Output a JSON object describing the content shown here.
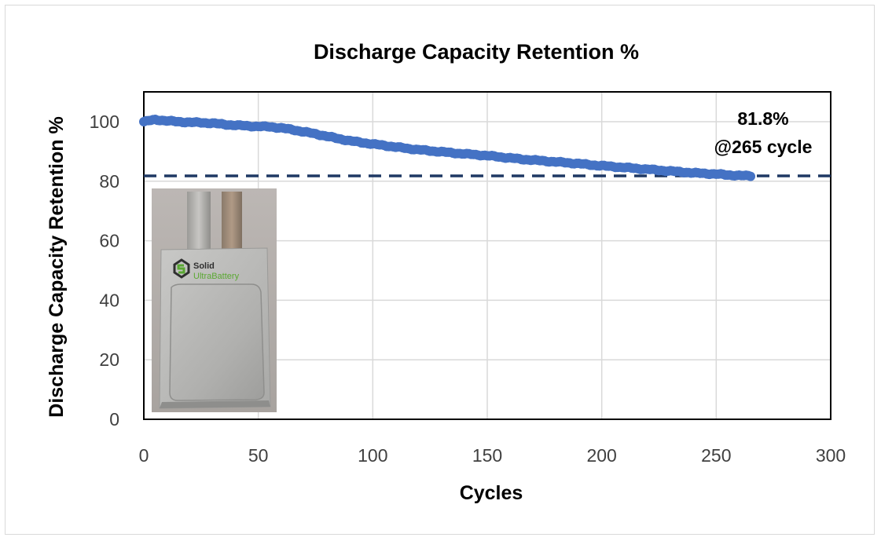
{
  "chart_data": {
    "type": "scatter",
    "title": "Discharge Capacity Retention %",
    "xlabel": "Cycles",
    "ylabel": "Discharge Capacity Retention %",
    "xlim": [
      0,
      300
    ],
    "ylim": [
      0,
      110
    ],
    "xticks": [
      0,
      50,
      100,
      150,
      200,
      250,
      300
    ],
    "yticks": [
      0,
      20,
      40,
      60,
      80,
      100
    ],
    "grid": true,
    "series": [
      {
        "color": "#4472c4",
        "x": [
          0,
          5,
          10,
          15,
          20,
          25,
          30,
          35,
          40,
          45,
          50,
          55,
          60,
          65,
          70,
          75,
          80,
          85,
          90,
          95,
          100,
          105,
          110,
          115,
          120,
          125,
          130,
          135,
          140,
          145,
          150,
          155,
          160,
          165,
          170,
          175,
          180,
          185,
          190,
          195,
          200,
          205,
          210,
          215,
          220,
          225,
          230,
          235,
          240,
          245,
          250,
          255,
          260,
          265
        ],
        "y": [
          100,
          100.7,
          100.3,
          100,
          99.8,
          99.7,
          99.5,
          99.1,
          98.8,
          98.6,
          98.4,
          98.3,
          97.9,
          97.3,
          96.6,
          95.9,
          95.1,
          94.3,
          93.6,
          93,
          92.5,
          92,
          91.5,
          91,
          90.6,
          90.2,
          89.9,
          89.5,
          89.2,
          88.9,
          88.6,
          88.2,
          87.8,
          87.4,
          87.1,
          86.8,
          86.5,
          86.2,
          85.9,
          85.5,
          85.2,
          84.9,
          84.6,
          84.3,
          84,
          83.7,
          83.4,
          83.1,
          82.8,
          82.6,
          82.4,
          82.1,
          81.9,
          81.8
        ]
      }
    ],
    "reference_line": {
      "y": 81.8,
      "color": "#1f3864",
      "style": "dashed"
    },
    "annotation": {
      "line1": "81.8%",
      "line2": "@265 cycle"
    }
  },
  "inset_photo": {
    "logo_line1": "Solid",
    "logo_line2": "UltraBattery"
  }
}
